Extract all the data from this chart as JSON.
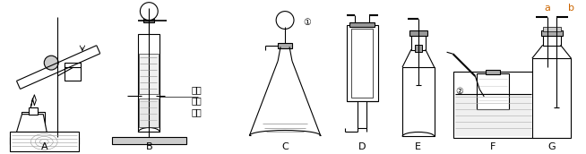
{
  "background_color": "#ffffff",
  "figsize": [
    6.54,
    1.72
  ],
  "dpi": 100,
  "label_A": "A",
  "label_B": "B",
  "label_C": "C",
  "label_D": "D",
  "label_E": "E",
  "label_F": "F",
  "label_G": "G",
  "label_a_color": "#cc6600",
  "label_b_color": "#cc6600",
  "chinese_text": "带小\n孔的\n隔板"
}
